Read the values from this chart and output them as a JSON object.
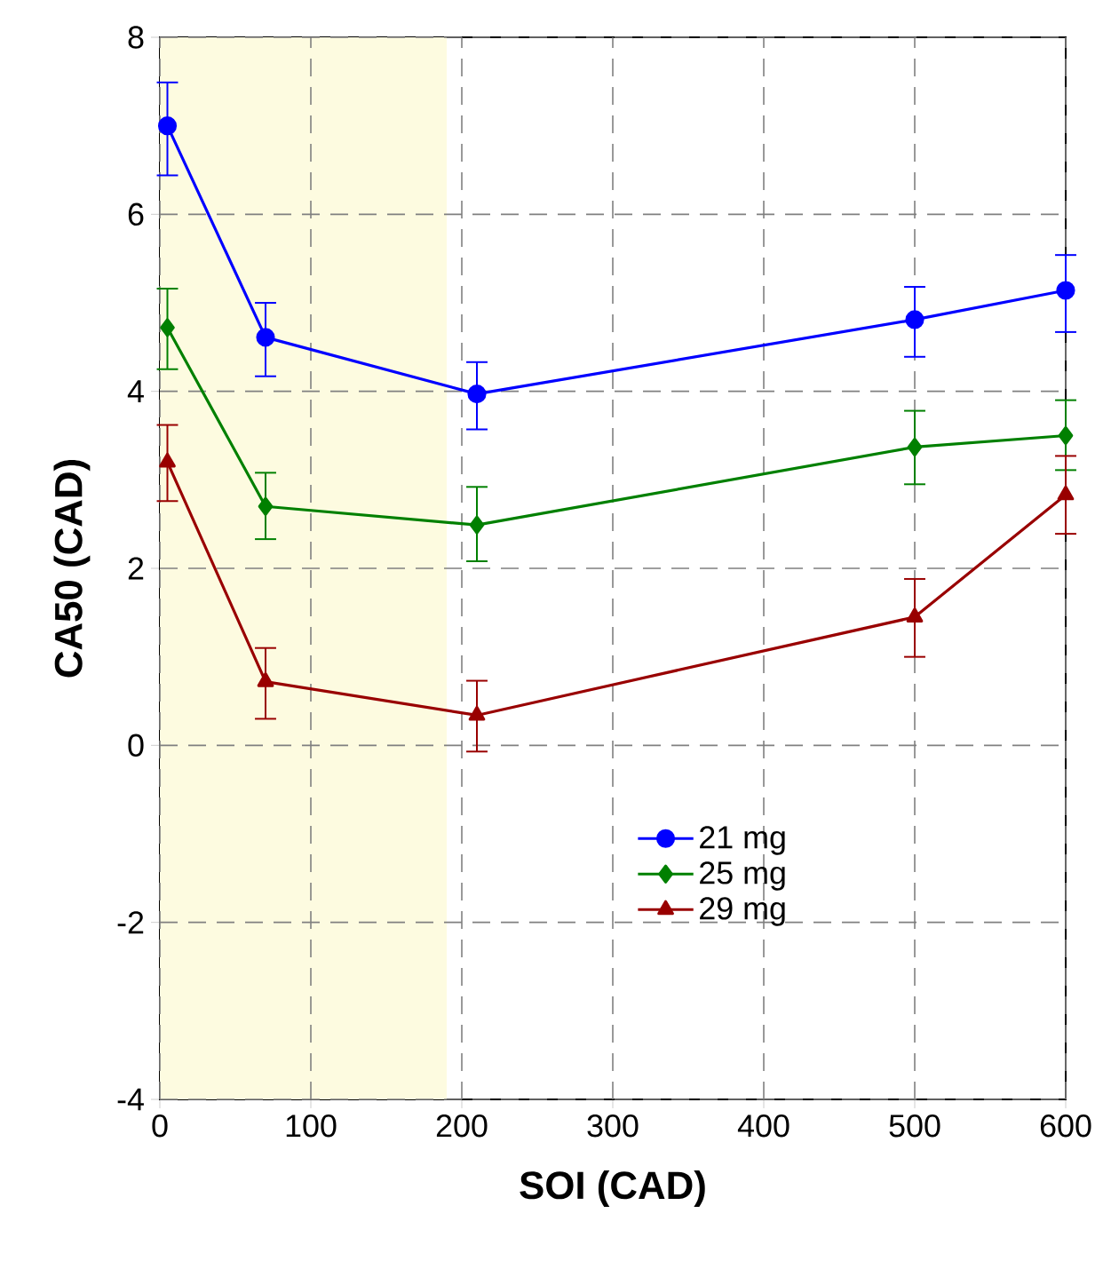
{
  "chart_data": {
    "type": "line",
    "xlabel": "SOI (CAD)",
    "ylabel": "CA50 (CAD)",
    "xlim": [
      0,
      600
    ],
    "xticks": [
      0,
      100,
      200,
      300,
      400,
      500,
      600
    ],
    "ylim": [
      -4,
      8
    ],
    "yticks": [
      -4,
      -2,
      0,
      2,
      4,
      6,
      8
    ],
    "grid": true,
    "legend": "bottom right",
    "line_style": "solid",
    "x": [
      5,
      70,
      210,
      500,
      600
    ],
    "bands": [
      {
        "axis": "x",
        "from": 0,
        "to": 190,
        "color": "#fdfbe0"
      }
    ],
    "series": [
      {
        "name": "21 mg",
        "color": "#0000ff",
        "marker": "circle",
        "values": [
          7.0,
          4.61,
          3.97,
          4.81,
          5.14
        ],
        "errors": [
          [
            6.44,
            7.49
          ],
          [
            4.17,
            5.0
          ],
          [
            3.57,
            4.33
          ],
          [
            4.39,
            5.18
          ],
          [
            4.67,
            5.54
          ]
        ]
      },
      {
        "name": "25 mg",
        "color": "#008000",
        "marker": "diamond",
        "values": [
          4.72,
          2.7,
          2.49,
          3.37,
          3.5
        ],
        "errors": [
          [
            4.25,
            5.16
          ],
          [
            2.33,
            3.08
          ],
          [
            2.08,
            2.92
          ],
          [
            2.95,
            3.78
          ],
          [
            3.11,
            3.9
          ]
        ]
      },
      {
        "name": "29 mg",
        "color": "#990000",
        "marker": "triangle",
        "values": [
          3.2,
          0.72,
          0.34,
          1.45,
          2.83
        ],
        "errors": [
          [
            2.76,
            3.62
          ],
          [
            0.3,
            1.1
          ],
          [
            -0.07,
            0.73
          ],
          [
            1.0,
            1.88
          ],
          [
            2.39,
            3.27
          ]
        ]
      }
    ]
  }
}
